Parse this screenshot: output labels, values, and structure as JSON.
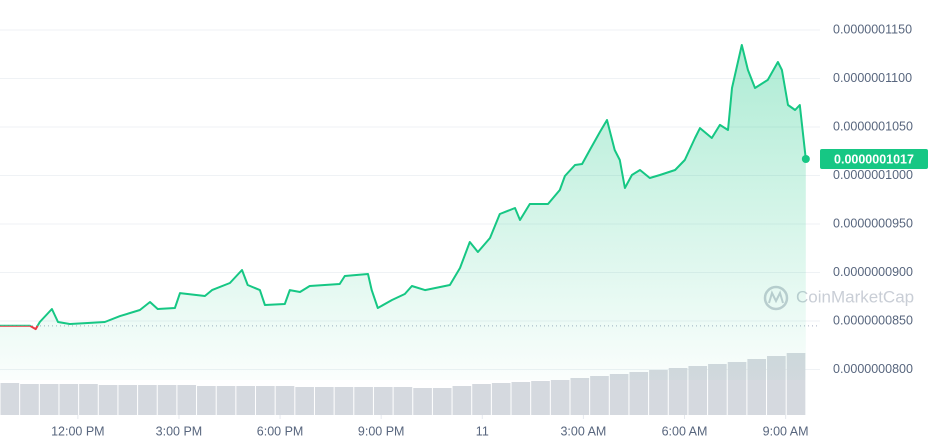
{
  "chart_data": {
    "type": "line",
    "color": "#16c784",
    "below_color": "#ea3943",
    "x": [
      -2.31,
      -1.42,
      -1.25,
      -1.13,
      -0.77,
      -0.59,
      -0.24,
      0.36,
      0.8,
      1.25,
      1.84,
      2.14,
      2.37,
      2.88,
      3.03,
      3.77,
      3.98,
      4.51,
      4.87,
      5.04,
      5.4,
      5.55,
      6.14,
      6.29,
      6.59,
      6.88,
      7.77,
      7.92,
      8.61,
      8.72,
      8.9,
      9.32,
      9.7,
      9.91,
      10.3,
      11.04,
      11.34,
      11.63,
      11.87,
      12.23,
      12.52,
      12.97,
      13.12,
      13.41,
      13.95,
      14.3,
      14.45,
      14.75,
      14.96,
      15.19,
      15.49,
      15.7,
      15.93,
      16.08,
      16.23,
      16.44,
      16.68,
      16.97,
      17.27,
      17.72,
      18.01,
      18.31,
      18.46,
      18.81,
      19.05,
      19.29,
      19.41,
      19.7,
      19.88,
      20.09,
      20.47,
      20.77,
      20.89,
      21.07,
      21.28,
      21.42,
      21.6
    ],
    "values": [
      8.45e-08,
      8.45e-08,
      8.417e-08,
      8.49e-08,
      8.624e-08,
      8.49e-08,
      8.469e-08,
      8.48e-08,
      8.49e-08,
      8.551e-08,
      8.613e-08,
      8.696e-08,
      8.624e-08,
      8.634e-08,
      8.788e-08,
      8.758e-08,
      8.819e-08,
      8.892e-08,
      9.026e-08,
      8.871e-08,
      8.819e-08,
      8.665e-08,
      8.675e-08,
      8.819e-08,
      8.799e-08,
      8.861e-08,
      8.881e-08,
      8.964e-08,
      8.984e-08,
      8.819e-08,
      8.634e-08,
      8.716e-08,
      8.778e-08,
      8.861e-08,
      8.819e-08,
      8.871e-08,
      9.046e-08,
      9.314e-08,
      9.211e-08,
      9.356e-08,
      9.603e-08,
      9.665e-08,
      9.541e-08,
      9.706e-08,
      9.706e-08,
      9.85e-08,
      9.995e-08,
      1.0108e-07,
      1.0118e-07,
      1.0263e-07,
      1.0448e-07,
      1.0572e-07,
      1.0263e-07,
      1.016e-07,
      9.871e-08,
      1.0005e-07,
      1.0057e-07,
      9.974e-08,
      1.0005e-07,
      1.0057e-07,
      1.016e-07,
      1.0386e-07,
      1.0489e-07,
      1.0386e-07,
      1.0521e-07,
      1.0469e-07,
      1.0902e-07,
      1.1345e-07,
      1.1088e-07,
      1.0902e-07,
      1.0985e-07,
      1.117e-07,
      1.1088e-07,
      1.0727e-07,
      1.0675e-07,
      1.0727e-07,
      1.017e-07
    ],
    "last_value_label": "0.0000001017",
    "reference_line": 8.45e-08,
    "xlim": [
      -2.31,
      22.02
    ],
    "ylim": [
      7.531e-08,
      1.1809e-07
    ],
    "xticks": [
      {
        "value": 0,
        "label": "12:00 PM"
      },
      {
        "value": 3,
        "label": "3:00 PM"
      },
      {
        "value": 6,
        "label": "6:00 PM"
      },
      {
        "value": 9,
        "label": "9:00 PM"
      },
      {
        "value": 12,
        "label": "11"
      },
      {
        "value": 15,
        "label": "3:00 AM"
      },
      {
        "value": 18,
        "label": "6:00 AM"
      },
      {
        "value": 21,
        "label": "9:00 AM"
      }
    ],
    "yticks": [
      {
        "value": 1.15e-07,
        "label": "0.0000001150"
      },
      {
        "value": 1.1e-07,
        "label": "0.0000001100"
      },
      {
        "value": 1.05e-07,
        "label": "0.0000001050"
      },
      {
        "value": 1e-07,
        "label": "0.0000001000"
      },
      {
        "value": 9.5e-08,
        "label": "0.0000000950"
      },
      {
        "value": 9e-08,
        "label": "0.0000000900"
      },
      {
        "value": 8.5e-08,
        "label": "0.0000000850"
      },
      {
        "value": 8e-08,
        "label": "0.0000000800"
      }
    ],
    "grid": true,
    "volume": {
      "values": [
        32,
        31,
        31,
        31,
        31,
        30,
        30,
        30,
        30,
        30,
        29,
        29,
        29,
        29,
        29,
        28,
        28,
        28,
        28,
        28,
        28,
        27,
        27,
        29,
        31,
        32,
        33,
        34,
        35,
        37,
        39,
        41,
        43,
        45,
        47,
        49,
        51,
        53,
        56,
        59,
        62
      ],
      "ylim": [
        0,
        70
      ],
      "color": "#d5d9df"
    },
    "watermark": "CoinMarketCap"
  }
}
